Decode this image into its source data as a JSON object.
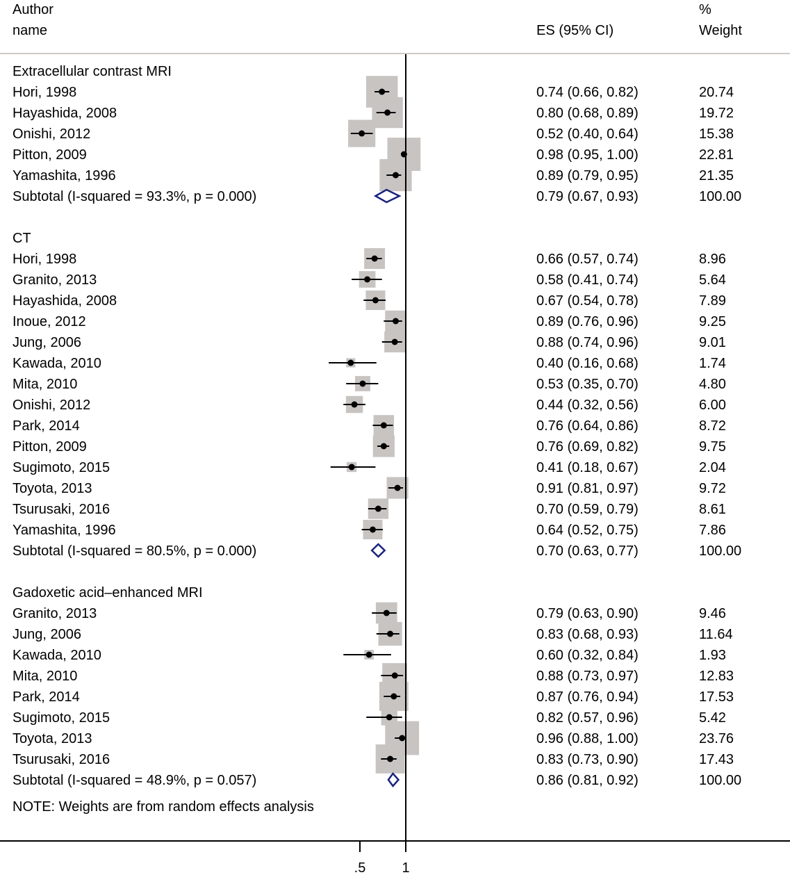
{
  "header": {
    "author_line1": "Author",
    "author_line2": "name",
    "es_label": "ES (95% CI)",
    "weight_line1": "%",
    "weight_line2": "Weight"
  },
  "chart_data": {
    "type": "forest",
    "xaxis": {
      "ticks": [
        0.5,
        1
      ],
      "tick_labels": [
        ".5",
        "1"
      ],
      "null_line": 1
    },
    "groups": [
      {
        "title": "Extracellular contrast MRI",
        "studies": [
          {
            "name": "Hori, 1998",
            "es": 0.74,
            "lo": 0.66,
            "hi": 0.82,
            "es_text": "0.74 (0.66, 0.82)",
            "weight": 20.74,
            "weight_text": "20.74"
          },
          {
            "name": "Hayashida, 2008",
            "es": 0.8,
            "lo": 0.68,
            "hi": 0.89,
            "es_text": "0.80 (0.68, 0.89)",
            "weight": 19.72,
            "weight_text": "19.72"
          },
          {
            "name": "Onishi, 2012",
            "es": 0.52,
            "lo": 0.4,
            "hi": 0.64,
            "es_text": "0.52 (0.40, 0.64)",
            "weight": 15.38,
            "weight_text": "15.38"
          },
          {
            "name": "Pitton, 2009",
            "es": 0.98,
            "lo": 0.95,
            "hi": 1.0,
            "es_text": "0.98 (0.95, 1.00)",
            "weight": 22.81,
            "weight_text": "22.81"
          },
          {
            "name": "Yamashita, 1996",
            "es": 0.89,
            "lo": 0.79,
            "hi": 0.95,
            "es_text": "0.89 (0.79, 0.95)",
            "weight": 21.35,
            "weight_text": "21.35"
          }
        ],
        "subtotal": {
          "label": "Subtotal  (I-squared = 93.3%, p = 0.000)",
          "es": 0.79,
          "lo": 0.67,
          "hi": 0.93,
          "es_text": "0.79 (0.67, 0.93)",
          "weight_text": "100.00"
        }
      },
      {
        "title": "CT",
        "studies": [
          {
            "name": "Hori, 1998",
            "es": 0.66,
            "lo": 0.57,
            "hi": 0.74,
            "es_text": "0.66 (0.57, 0.74)",
            "weight": 8.96,
            "weight_text": "8.96"
          },
          {
            "name": "Granito, 2013",
            "es": 0.58,
            "lo": 0.41,
            "hi": 0.74,
            "es_text": "0.58 (0.41, 0.74)",
            "weight": 5.64,
            "weight_text": "5.64"
          },
          {
            "name": "Hayashida, 2008",
            "es": 0.67,
            "lo": 0.54,
            "hi": 0.78,
            "es_text": "0.67 (0.54, 0.78)",
            "weight": 7.89,
            "weight_text": "7.89"
          },
          {
            "name": "Inoue, 2012",
            "es": 0.89,
            "lo": 0.76,
            "hi": 0.96,
            "es_text": "0.89 (0.76, 0.96)",
            "weight": 9.25,
            "weight_text": "9.25"
          },
          {
            "name": "Jung, 2006",
            "es": 0.88,
            "lo": 0.74,
            "hi": 0.96,
            "es_text": "0.88 (0.74, 0.96)",
            "weight": 9.01,
            "weight_text": "9.01"
          },
          {
            "name": "Kawada, 2010",
            "es": 0.4,
            "lo": 0.16,
            "hi": 0.68,
            "es_text": "0.40 (0.16, 0.68)",
            "weight": 1.74,
            "weight_text": "1.74"
          },
          {
            "name": "Mita, 2010",
            "es": 0.53,
            "lo": 0.35,
            "hi": 0.7,
            "es_text": "0.53 (0.35, 0.70)",
            "weight": 4.8,
            "weight_text": "4.80"
          },
          {
            "name": "Onishi, 2012",
            "es": 0.44,
            "lo": 0.32,
            "hi": 0.56,
            "es_text": "0.44 (0.32, 0.56)",
            "weight": 6.0,
            "weight_text": "6.00"
          },
          {
            "name": "Park, 2014",
            "es": 0.76,
            "lo": 0.64,
            "hi": 0.86,
            "es_text": "0.76 (0.64, 0.86)",
            "weight": 8.72,
            "weight_text": "8.72"
          },
          {
            "name": "Pitton, 2009",
            "es": 0.76,
            "lo": 0.69,
            "hi": 0.82,
            "es_text": "0.76 (0.69, 0.82)",
            "weight": 9.75,
            "weight_text": "9.75"
          },
          {
            "name": "Sugimoto, 2015",
            "es": 0.41,
            "lo": 0.18,
            "hi": 0.67,
            "es_text": "0.41 (0.18, 0.67)",
            "weight": 2.04,
            "weight_text": "2.04"
          },
          {
            "name": "Toyota, 2013",
            "es": 0.91,
            "lo": 0.81,
            "hi": 0.97,
            "es_text": "0.91 (0.81, 0.97)",
            "weight": 9.72,
            "weight_text": "9.72"
          },
          {
            "name": "Tsurusaki, 2016",
            "es": 0.7,
            "lo": 0.59,
            "hi": 0.79,
            "es_text": "0.70 (0.59, 0.79)",
            "weight": 8.61,
            "weight_text": "8.61"
          },
          {
            "name": "Yamashita, 1996",
            "es": 0.64,
            "lo": 0.52,
            "hi": 0.75,
            "es_text": "0.64 (0.52, 0.75)",
            "weight": 7.86,
            "weight_text": "7.86"
          }
        ],
        "subtotal": {
          "label": "Subtotal  (I-squared = 80.5%, p = 0.000)",
          "es": 0.7,
          "lo": 0.63,
          "hi": 0.77,
          "es_text": "0.70 (0.63, 0.77)",
          "weight_text": "100.00"
        }
      },
      {
        "title": "Gadoxetic acid–enhanced MRI",
        "studies": [
          {
            "name": "Granito, 2013",
            "es": 0.79,
            "lo": 0.63,
            "hi": 0.9,
            "es_text": "0.79 (0.63, 0.90)",
            "weight": 9.46,
            "weight_text": "9.46"
          },
          {
            "name": "Jung, 2006",
            "es": 0.83,
            "lo": 0.68,
            "hi": 0.93,
            "es_text": "0.83 (0.68, 0.93)",
            "weight": 11.64,
            "weight_text": "11.64"
          },
          {
            "name": "Kawada, 2010",
            "es": 0.6,
            "lo": 0.32,
            "hi": 0.84,
            "es_text": "0.60 (0.32, 0.84)",
            "weight": 1.93,
            "weight_text": "1.93"
          },
          {
            "name": "Mita, 2010",
            "es": 0.88,
            "lo": 0.73,
            "hi": 0.97,
            "es_text": "0.88 (0.73, 0.97)",
            "weight": 12.83,
            "weight_text": "12.83"
          },
          {
            "name": "Park, 2014",
            "es": 0.87,
            "lo": 0.76,
            "hi": 0.94,
            "es_text": "0.87 (0.76, 0.94)",
            "weight": 17.53,
            "weight_text": "17.53"
          },
          {
            "name": "Sugimoto, 2015",
            "es": 0.82,
            "lo": 0.57,
            "hi": 0.96,
            "es_text": "0.82 (0.57, 0.96)",
            "weight": 5.42,
            "weight_text": "5.42"
          },
          {
            "name": "Toyota, 2013",
            "es": 0.96,
            "lo": 0.88,
            "hi": 1.0,
            "es_text": "0.96 (0.88, 1.00)",
            "weight": 23.76,
            "weight_text": "23.76"
          },
          {
            "name": "Tsurusaki, 2016",
            "es": 0.83,
            "lo": 0.73,
            "hi": 0.9,
            "es_text": "0.83 (0.73, 0.90)",
            "weight": 17.43,
            "weight_text": "17.43"
          }
        ],
        "subtotal": {
          "label": "Subtotal  (I-squared = 48.9%, p = 0.057)",
          "es": 0.86,
          "lo": 0.81,
          "hi": 0.92,
          "es_text": "0.86 (0.81, 0.92)",
          "weight_text": "100.00"
        }
      }
    ],
    "note": "NOTE: Weights are from random effects analysis",
    "colors": {
      "box": "#c8c4c2",
      "point": "#000000",
      "diamond": "#1a237e",
      "rule": "#d0c8c6"
    }
  }
}
